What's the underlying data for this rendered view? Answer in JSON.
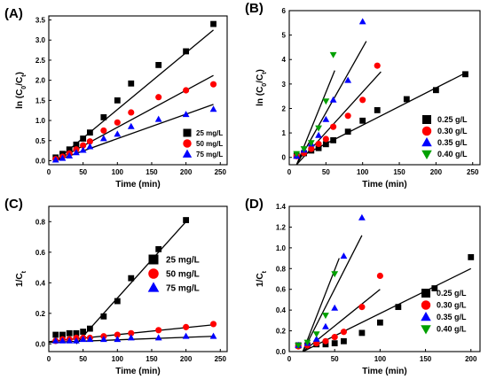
{
  "chart_data": [
    {
      "id": "A",
      "panel_label": "(A)",
      "type": "scatter",
      "xlabel": "Time (min)",
      "ylabel": "ln (C0/Ct)",
      "ylabel_parts": [
        "ln (C",
        "0",
        "/C",
        "t",
        ")"
      ],
      "xlim": [
        0,
        260
      ],
      "ylim": [
        -0.1,
        3.6
      ],
      "xticks": [
        0,
        50,
        100,
        150,
        200,
        250
      ],
      "yticks": [
        0.0,
        0.5,
        1.0,
        1.5,
        2.0,
        2.5,
        3.0,
        3.5
      ],
      "ytick_decimals": 1,
      "legend_placement": "bottom-right",
      "series": [
        {
          "name": "25 mg/L",
          "marker": "square",
          "color": "#000000",
          "x": [
            10,
            20,
            30,
            40,
            50,
            60,
            80,
            100,
            120,
            160,
            200,
            240
          ],
          "y": [
            0.08,
            0.17,
            0.28,
            0.4,
            0.55,
            0.7,
            1.08,
            1.5,
            1.92,
            2.38,
            2.72,
            3.4
          ],
          "fit": [
            [
              10,
              0.0
            ],
            [
              240,
              3.25
            ]
          ]
        },
        {
          "name": "50 mg/L",
          "marker": "circle",
          "color": "#ff0000",
          "x": [
            10,
            20,
            30,
            40,
            50,
            60,
            80,
            100,
            120,
            160,
            200,
            240
          ],
          "y": [
            0.04,
            0.1,
            0.18,
            0.28,
            0.38,
            0.48,
            0.75,
            0.95,
            1.2,
            1.58,
            1.75,
            1.9
          ],
          "fit": [
            [
              10,
              0.0
            ],
            [
              240,
              2.12
            ]
          ]
        },
        {
          "name": "75 mg/L",
          "marker": "triangle",
          "color": "#0000ff",
          "x": [
            10,
            20,
            30,
            40,
            50,
            60,
            80,
            100,
            120,
            160,
            200,
            240
          ],
          "y": [
            0.02,
            0.06,
            0.12,
            0.2,
            0.26,
            0.35,
            0.55,
            0.66,
            0.85,
            1.03,
            1.15,
            1.28
          ],
          "fit": [
            [
              10,
              0.0
            ],
            [
              240,
              1.4
            ]
          ]
        }
      ]
    },
    {
      "id": "B",
      "panel_label": "(B)",
      "type": "scatter",
      "xlabel": "Time (min)",
      "ylabel": "ln (C0/Ct)",
      "ylabel_parts": [
        "ln (C",
        "0",
        "/C",
        "t",
        ")"
      ],
      "xlim": [
        0,
        260
      ],
      "ylim": [
        -0.3,
        6
      ],
      "xticks": [
        0,
        50,
        100,
        150,
        200,
        250
      ],
      "yticks": [
        0,
        1,
        2,
        3,
        4,
        5,
        6
      ],
      "ytick_decimals": 0,
      "legend_placement": "bottom-right",
      "series": [
        {
          "name": "0.25 g/L",
          "marker": "square",
          "color": "#000000",
          "x": [
            10,
            20,
            30,
            40,
            50,
            60,
            80,
            100,
            120,
            160,
            200,
            240
          ],
          "y": [
            0.07,
            0.17,
            0.28,
            0.38,
            0.54,
            0.7,
            1.05,
            1.5,
            1.93,
            2.38,
            2.75,
            3.4
          ],
          "fit": [
            [
              10,
              -0.05
            ],
            [
              240,
              3.45
            ]
          ]
        },
        {
          "name": "0.30 g/L",
          "marker": "circle",
          "color": "#ff0000",
          "x": [
            10,
            20,
            30,
            40,
            50,
            60,
            80,
            100,
            120
          ],
          "y": [
            0.05,
            0.18,
            0.35,
            0.55,
            0.75,
            1.25,
            1.7,
            2.35,
            3.75
          ],
          "fit": [
            [
              10,
              -0.3
            ],
            [
              125,
              3.5
            ]
          ]
        },
        {
          "name": "0.35 g/L",
          "marker": "triangle",
          "color": "#0000ff",
          "x": [
            10,
            20,
            30,
            40,
            50,
            60,
            80,
            100
          ],
          "y": [
            0.05,
            0.3,
            0.55,
            0.9,
            1.55,
            2.35,
            3.15,
            5.55
          ],
          "fit": [
            [
              10,
              -0.3
            ],
            [
              105,
              4.75
            ]
          ]
        },
        {
          "name": "0.40 g/L",
          "marker": "triangle-down",
          "color": "#00a000",
          "x": [
            10,
            20,
            30,
            40,
            50,
            60
          ],
          "y": [
            0.15,
            0.35,
            0.6,
            1.2,
            2.3,
            4.2
          ],
          "fit": [
            [
              10,
              -0.3
            ],
            [
              62,
              3.55
            ]
          ]
        }
      ]
    },
    {
      "id": "C",
      "panel_label": "(C)",
      "type": "scatter",
      "xlabel": "Time (min)",
      "ylabel": "1/Ct",
      "ylabel_parts": [
        "1/C",
        "t",
        "",
        "",
        ""
      ],
      "xlim": [
        0,
        260
      ],
      "ylim": [
        -0.05,
        0.9
      ],
      "xticks": [
        0,
        50,
        100,
        150,
        200,
        250
      ],
      "yticks": [
        0.0,
        0.2,
        0.4,
        0.6,
        0.8
      ],
      "ytick_decimals": 1,
      "legend_placement": "top-right",
      "series": [
        {
          "name": "25 mg/L",
          "marker": "square",
          "color": "#000000",
          "x": [
            10,
            20,
            30,
            40,
            50,
            60,
            80,
            100,
            120,
            160,
            200
          ],
          "y": [
            0.06,
            0.06,
            0.07,
            0.07,
            0.08,
            0.1,
            0.18,
            0.28,
            0.43,
            0.62,
            0.81
          ],
          "fit": [
            [
              40,
              0.0
            ],
            [
              200,
              0.8
            ]
          ]
        },
        {
          "name": "50 mg/L",
          "marker": "circle",
          "color": "#ff0000",
          "x": [
            10,
            20,
            30,
            40,
            50,
            60,
            80,
            100,
            120,
            160,
            200,
            240
          ],
          "y": [
            0.02,
            0.03,
            0.03,
            0.04,
            0.04,
            0.04,
            0.05,
            0.06,
            0.07,
            0.09,
            0.11,
            0.13
          ],
          "fit": [
            [
              0,
              0.015
            ],
            [
              240,
              0.125
            ]
          ]
        },
        {
          "name": "75 mg/L",
          "marker": "triangle",
          "color": "#0000ff",
          "x": [
            10,
            20,
            30,
            40,
            50,
            60,
            80,
            100,
            120,
            160,
            200,
            240
          ],
          "y": [
            0.02,
            0.02,
            0.02,
            0.02,
            0.03,
            0.03,
            0.03,
            0.03,
            0.04,
            0.04,
            0.05,
            0.05
          ],
          "fit": [
            [
              0,
              0.01
            ],
            [
              240,
              0.05
            ]
          ]
        }
      ]
    },
    {
      "id": "D",
      "panel_label": "(D)",
      "type": "scatter",
      "xlabel": "Time (min)",
      "ylabel": "1/Ct",
      "ylabel_parts": [
        "1/C",
        "t",
        "",
        "",
        ""
      ],
      "xlim": [
        0,
        210
      ],
      "ylim": [
        0,
        1.4
      ],
      "xticks": [
        0,
        50,
        100,
        150,
        200
      ],
      "yticks": [
        0.0,
        0.2,
        0.4,
        0.6,
        0.8,
        1.0,
        1.2,
        1.4
      ],
      "ytick_decimals": 1,
      "legend_placement": "bottom-right",
      "series": [
        {
          "name": "0.25 g/L",
          "marker": "square",
          "color": "#000000",
          "x": [
            10,
            20,
            30,
            40,
            50,
            60,
            80,
            100,
            120,
            160,
            200
          ],
          "y": [
            0.06,
            0.06,
            0.07,
            0.07,
            0.08,
            0.1,
            0.18,
            0.28,
            0.43,
            0.61,
            0.91
          ],
          "fit": [
            [
              15,
              0.0
            ],
            [
              200,
              0.8
            ]
          ]
        },
        {
          "name": "0.30 g/L",
          "marker": "circle",
          "color": "#ff0000",
          "x": [
            10,
            20,
            30,
            40,
            50,
            60,
            80,
            100
          ],
          "y": [
            0.05,
            0.06,
            0.08,
            0.1,
            0.14,
            0.19,
            0.43,
            0.73
          ],
          "fit": [
            [
              15,
              0.0
            ],
            [
              100,
              0.6
            ]
          ]
        },
        {
          "name": "0.35 g/L",
          "marker": "triangle",
          "color": "#0000ff",
          "x": [
            10,
            20,
            30,
            40,
            50,
            60,
            80
          ],
          "y": [
            0.06,
            0.08,
            0.12,
            0.24,
            0.42,
            0.92,
            1.29
          ],
          "fit": [
            [
              15,
              0.0
            ],
            [
              80,
              1.12
            ]
          ]
        },
        {
          "name": "0.40 g/L",
          "marker": "triangle-down",
          "color": "#00a000",
          "x": [
            10,
            20,
            30,
            40,
            50
          ],
          "y": [
            0.06,
            0.09,
            0.17,
            0.35,
            0.75
          ],
          "fit": [
            [
              15,
              0.0
            ],
            [
              55,
              0.9
            ]
          ]
        }
      ]
    }
  ]
}
